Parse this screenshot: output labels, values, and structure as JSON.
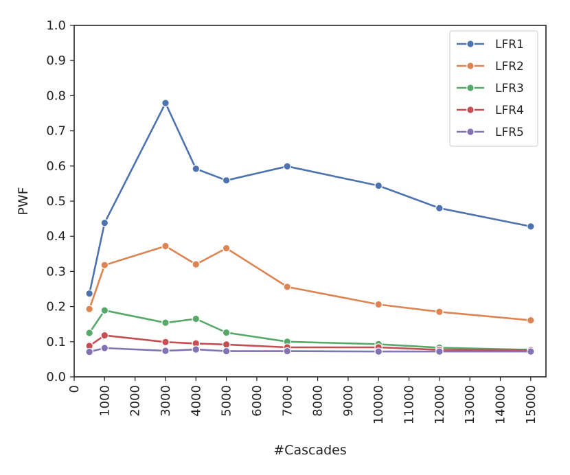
{
  "chart_data": {
    "type": "line",
    "title": "",
    "xlabel": "#Cascades",
    "ylabel": "PWF",
    "xlim": [
      0,
      15500
    ],
    "ylim": [
      0.0,
      1.0
    ],
    "x_ticks": [
      0,
      1000,
      2000,
      3000,
      4000,
      5000,
      6000,
      7000,
      8000,
      9000,
      10000,
      11000,
      12000,
      13000,
      14000,
      15000
    ],
    "x_tick_labels": [
      "0",
      "1000",
      "2000",
      "3000",
      "4000",
      "5000",
      "6000",
      "7000",
      "8000",
      "9000",
      "10000",
      "11000",
      "12000",
      "13000",
      "14000",
      "15000"
    ],
    "y_ticks": [
      0.0,
      0.1,
      0.2,
      0.3,
      0.4,
      0.5,
      0.6,
      0.7,
      0.8,
      0.9,
      1.0
    ],
    "y_tick_labels": [
      "0.0",
      "0.1",
      "0.2",
      "0.3",
      "0.4",
      "0.5",
      "0.6",
      "0.7",
      "0.8",
      "0.9",
      "1.0"
    ],
    "x": [
      500,
      1000,
      3000,
      4000,
      5000,
      7000,
      10000,
      12000,
      15000
    ],
    "series": [
      {
        "name": "LFR1",
        "color": "#4c72b0",
        "values": [
          0.237,
          0.438,
          0.779,
          0.592,
          0.559,
          0.599,
          0.544,
          0.48,
          0.428
        ]
      },
      {
        "name": "LFR2",
        "color": "#dd8452",
        "values": [
          0.193,
          0.318,
          0.372,
          0.32,
          0.366,
          0.256,
          0.206,
          0.185,
          0.161
        ]
      },
      {
        "name": "LFR3",
        "color": "#55a868",
        "values": [
          0.125,
          0.189,
          0.154,
          0.165,
          0.126,
          0.1,
          0.093,
          0.083,
          0.077
        ]
      },
      {
        "name": "LFR4",
        "color": "#c44e52",
        "values": [
          0.088,
          0.118,
          0.099,
          0.095,
          0.092,
          0.084,
          0.084,
          0.077,
          0.076
        ]
      },
      {
        "name": "LFR5",
        "color": "#8172b3",
        "values": [
          0.071,
          0.082,
          0.074,
          0.078,
          0.073,
          0.073,
          0.072,
          0.072,
          0.072
        ]
      }
    ],
    "legend": {
      "position": "top-right",
      "entries": [
        "LFR1",
        "LFR2",
        "LFR3",
        "LFR4",
        "LFR5"
      ]
    },
    "grid": false
  }
}
